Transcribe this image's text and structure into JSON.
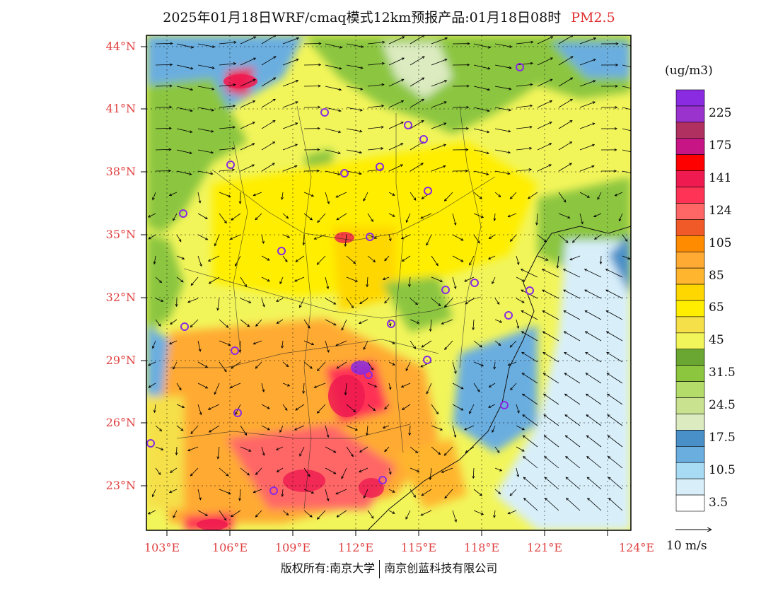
{
  "title": "2025年01月18日WRF/cmaq模式12km预报产品:01月18日08时",
  "pollutant": "PM2.5",
  "lat_ticks": [
    "44°N",
    "41°N",
    "38°N",
    "35°N",
    "32°N",
    "29°N",
    "26°N",
    "23°N"
  ],
  "lon_ticks": [
    "103°E",
    "106°E",
    "109°E",
    "112°E",
    "115°E",
    "118°E",
    "121°E",
    "124°E"
  ],
  "colorbar": {
    "unit": "(ug/m3)",
    "levels": [
      {
        "label": "",
        "color": "#8a2be2"
      },
      {
        "label": "225",
        "color": "#9a32cd"
      },
      {
        "label": "",
        "color": "#b03060"
      },
      {
        "label": "175",
        "color": "#c71585"
      },
      {
        "label": "",
        "color": "#ff0000"
      },
      {
        "label": "141",
        "color": "#ee1a50"
      },
      {
        "label": "",
        "color": "#ff3355"
      },
      {
        "label": "124",
        "color": "#ff6666"
      },
      {
        "label": "",
        "color": "#f05a28"
      },
      {
        "label": "105",
        "color": "#ff8c00"
      },
      {
        "label": "",
        "color": "#ffaa33"
      },
      {
        "label": "85",
        "color": "#ffb52e"
      },
      {
        "label": "",
        "color": "#ffd700"
      },
      {
        "label": "65",
        "color": "#ffee00"
      },
      {
        "label": "",
        "color": "#f5e04a"
      },
      {
        "label": "45",
        "color": "#f2f55a"
      },
      {
        "label": "",
        "color": "#6aa632"
      },
      {
        "label": "31.5",
        "color": "#8cc63f"
      },
      {
        "label": "",
        "color": "#b4dc6a"
      },
      {
        "label": "24.5",
        "color": "#c8e290"
      },
      {
        "label": "",
        "color": "#dcebc0"
      },
      {
        "label": "17.5",
        "color": "#4a90c8"
      },
      {
        "label": "",
        "color": "#6aaee0"
      },
      {
        "label": "10.5",
        "color": "#a8dcf5"
      },
      {
        "label": "",
        "color": "#d8effa"
      },
      {
        "label": "3.5",
        "color": "#ffffff"
      }
    ]
  },
  "wind_reference": "10 m/s",
  "copyright": {
    "left": "版权所有:南京大学",
    "right": "南京创蓝科技有限公司"
  }
}
